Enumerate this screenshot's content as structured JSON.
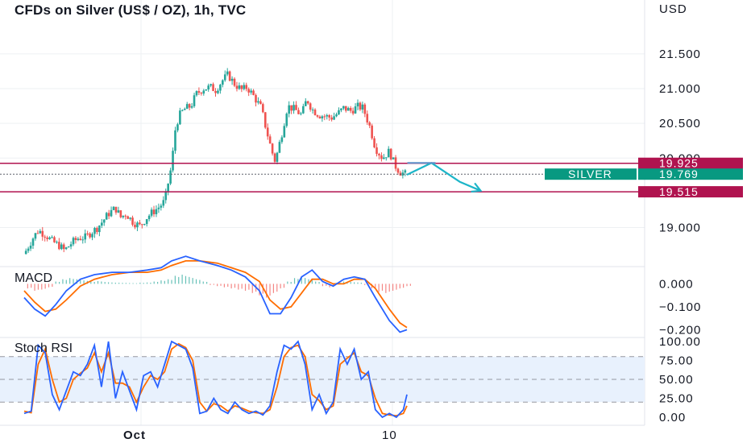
{
  "chart_data": {
    "type": "candlestick",
    "title": "CFDs on Silver (US$ / OZ), 1h, TVC",
    "currency": "USD",
    "price_axis": {
      "ticks": [
        {
          "value": 21.5,
          "label": "21.500"
        },
        {
          "value": 21.0,
          "label": "21.000"
        },
        {
          "value": 20.5,
          "label": "20.500"
        },
        {
          "value": 20.0,
          "label": "20.000"
        },
        {
          "value": 19.0,
          "label": "19.000"
        }
      ],
      "range": [
        18.45,
        21.95
      ]
    },
    "time_axis": {
      "ticks": [
        {
          "label": "Oct"
        },
        {
          "label": "10"
        }
      ]
    },
    "colors": {
      "up": "#26a69a",
      "down": "#ef5350",
      "level": "#b0134f",
      "silver_tag": "#089981",
      "arrow": "#1cb5c8",
      "macd": "#2962ff",
      "signal": "#ff6d00",
      "stoch_k": "#2962ff",
      "stoch_d": "#ff6d00"
    },
    "levels": [
      {
        "value": 19.925,
        "label": "19.925"
      },
      {
        "value": 19.515,
        "label": "19.515"
      }
    ],
    "last_price": {
      "symbol": "SILVER",
      "value": 19.769,
      "label": "19.769"
    },
    "price_path": [
      [
        0,
        18.62
      ],
      [
        5,
        18.85
      ],
      [
        8,
        18.96
      ],
      [
        12,
        18.9
      ],
      [
        16,
        18.8
      ],
      [
        20,
        18.74
      ],
      [
        23,
        18.67
      ],
      [
        27,
        18.78
      ],
      [
        31,
        18.85
      ],
      [
        35,
        18.86
      ],
      [
        38,
        18.93
      ],
      [
        41,
        18.98
      ],
      [
        45,
        19.1
      ],
      [
        48,
        19.2
      ],
      [
        52,
        19.28
      ],
      [
        55,
        19.15
      ],
      [
        58,
        19.2
      ],
      [
        62,
        19.08
      ],
      [
        66,
        19.02
      ],
      [
        70,
        19.15
      ],
      [
        73,
        19.22
      ],
      [
        77,
        19.3
      ],
      [
        80,
        19.38
      ],
      [
        84,
        19.9
      ],
      [
        86,
        20.4
      ],
      [
        88,
        20.6
      ],
      [
        91,
        20.7
      ],
      [
        95,
        20.75
      ],
      [
        98,
        20.92
      ],
      [
        102,
        21.0
      ],
      [
        106,
        21.02
      ],
      [
        109,
        20.98
      ],
      [
        113,
        21.12
      ],
      [
        116,
        21.2
      ],
      [
        120,
        21.06
      ],
      [
        124,
        20.98
      ],
      [
        127,
        21.02
      ],
      [
        131,
        20.88
      ],
      [
        135,
        20.72
      ],
      [
        138,
        20.4
      ],
      [
        141,
        20.1
      ],
      [
        143,
        19.95
      ],
      [
        147,
        20.38
      ],
      [
        150,
        20.75
      ],
      [
        154,
        20.7
      ],
      [
        158,
        20.62
      ],
      [
        161,
        20.85
      ],
      [
        164,
        20.7
      ],
      [
        168,
        20.62
      ],
      [
        172,
        20.6
      ],
      [
        175,
        20.58
      ],
      [
        179,
        20.65
      ],
      [
        182,
        20.72
      ],
      [
        186,
        20.68
      ],
      [
        190,
        20.74
      ],
      [
        193,
        20.72
      ],
      [
        197,
        20.44
      ],
      [
        200,
        20.15
      ],
      [
        204,
        20.0
      ],
      [
        208,
        20.1
      ],
      [
        211,
        19.9
      ],
      [
        214,
        19.8
      ],
      [
        218,
        19.76
      ]
    ],
    "projection": [
      [
        218,
        19.76
      ],
      [
        232,
        19.93
      ],
      [
        248,
        19.66
      ],
      [
        260,
        19.53
      ]
    ],
    "macd": {
      "label": "MACD",
      "ticks": [
        {
          "value": 0.0,
          "label": "0.000"
        },
        {
          "value": -0.1,
          "label": "−0.100"
        },
        {
          "value": -0.2,
          "label": "−0.200"
        }
      ],
      "range": [
        -0.23,
        0.075
      ],
      "macd_path": [
        [
          0,
          -0.06
        ],
        [
          6,
          -0.11
        ],
        [
          12,
          -0.14
        ],
        [
          18,
          -0.09
        ],
        [
          24,
          -0.03
        ],
        [
          32,
          0.02
        ],
        [
          40,
          0.04
        ],
        [
          50,
          0.05
        ],
        [
          60,
          0.05
        ],
        [
          70,
          0.06
        ],
        [
          78,
          0.07
        ],
        [
          84,
          0.1
        ],
        [
          92,
          0.12
        ],
        [
          100,
          0.1
        ],
        [
          110,
          0.08
        ],
        [
          118,
          0.06
        ],
        [
          126,
          0.03
        ],
        [
          134,
          -0.03
        ],
        [
          140,
          -0.13
        ],
        [
          146,
          -0.13
        ],
        [
          152,
          -0.06
        ],
        [
          158,
          0.03
        ],
        [
          164,
          0.06
        ],
        [
          170,
          0.01
        ],
        [
          176,
          -0.01
        ],
        [
          182,
          0.02
        ],
        [
          188,
          0.03
        ],
        [
          194,
          0.02
        ],
        [
          200,
          -0.06
        ],
        [
          208,
          -0.16
        ],
        [
          214,
          -0.21
        ],
        [
          218,
          -0.2
        ]
      ],
      "signal_path": [
        [
          0,
          -0.03
        ],
        [
          6,
          -0.08
        ],
        [
          12,
          -0.12
        ],
        [
          18,
          -0.11
        ],
        [
          24,
          -0.07
        ],
        [
          32,
          -0.01
        ],
        [
          40,
          0.02
        ],
        [
          50,
          0.04
        ],
        [
          60,
          0.05
        ],
        [
          70,
          0.05
        ],
        [
          78,
          0.06
        ],
        [
          84,
          0.08
        ],
        [
          92,
          0.1
        ],
        [
          100,
          0.1
        ],
        [
          110,
          0.09
        ],
        [
          118,
          0.07
        ],
        [
          126,
          0.05
        ],
        [
          134,
          0.01
        ],
        [
          140,
          -0.07
        ],
        [
          146,
          -0.11
        ],
        [
          152,
          -0.1
        ],
        [
          158,
          -0.04
        ],
        [
          164,
          0.02
        ],
        [
          170,
          0.02
        ],
        [
          176,
          0.0
        ],
        [
          182,
          0.0
        ],
        [
          188,
          0.02
        ],
        [
          194,
          0.02
        ],
        [
          200,
          -0.02
        ],
        [
          208,
          -0.11
        ],
        [
          214,
          -0.17
        ],
        [
          218,
          -0.19
        ]
      ],
      "hist": [
        [
          2,
          -0.02
        ],
        [
          6,
          -0.03
        ],
        [
          10,
          -0.025
        ],
        [
          14,
          -0.015
        ],
        [
          18,
          0.01
        ],
        [
          22,
          0.02
        ],
        [
          26,
          0.025
        ],
        [
          30,
          0.02
        ],
        [
          34,
          0.015
        ],
        [
          38,
          0.01
        ],
        [
          42,
          0.012
        ],
        [
          46,
          0.008
        ],
        [
          50,
          0.006
        ],
        [
          54,
          0.005
        ],
        [
          58,
          0.004
        ],
        [
          62,
          0.003
        ],
        [
          66,
          0.005
        ],
        [
          70,
          0.006
        ],
        [
          74,
          0.01
        ],
        [
          78,
          0.015
        ],
        [
          82,
          0.02
        ],
        [
          86,
          0.035
        ],
        [
          90,
          0.04
        ],
        [
          94,
          0.03
        ],
        [
          98,
          0.02
        ],
        [
          102,
          0.01
        ],
        [
          106,
          -0.005
        ],
        [
          110,
          -0.01
        ],
        [
          114,
          -0.015
        ],
        [
          118,
          -0.02
        ],
        [
          122,
          -0.025
        ],
        [
          126,
          -0.03
        ],
        [
          130,
          -0.04
        ],
        [
          134,
          -0.05
        ],
        [
          138,
          -0.06
        ],
        [
          142,
          -0.04
        ],
        [
          146,
          -0.02
        ],
        [
          150,
          0.01
        ],
        [
          154,
          0.025
        ],
        [
          158,
          0.03
        ],
        [
          162,
          0.02
        ],
        [
          166,
          0.01
        ],
        [
          170,
          -0.01
        ],
        [
          174,
          -0.015
        ],
        [
          178,
          0.005
        ],
        [
          182,
          0.01
        ],
        [
          186,
          0.008
        ],
        [
          190,
          0.006
        ],
        [
          194,
          -0.005
        ],
        [
          198,
          -0.02
        ],
        [
          202,
          -0.035
        ],
        [
          206,
          -0.04
        ],
        [
          210,
          -0.03
        ],
        [
          214,
          -0.02
        ],
        [
          218,
          -0.01
        ]
      ]
    },
    "stoch_rsi": {
      "label": "Stoch RSI",
      "ticks": [
        {
          "value": 100,
          "label": "100.00"
        },
        {
          "value": 75,
          "label": "75.00"
        },
        {
          "value": 50,
          "label": "50.00"
        },
        {
          "value": 25,
          "label": "25.00"
        },
        {
          "value": 0,
          "label": "0.00"
        }
      ],
      "band": [
        20,
        80
      ],
      "k_path": [
        [
          0,
          5
        ],
        [
          4,
          8
        ],
        [
          8,
          95
        ],
        [
          12,
          85
        ],
        [
          16,
          30
        ],
        [
          20,
          10
        ],
        [
          24,
          35
        ],
        [
          28,
          60
        ],
        [
          32,
          55
        ],
        [
          36,
          70
        ],
        [
          40,
          95
        ],
        [
          44,
          40
        ],
        [
          48,
          100
        ],
        [
          52,
          25
        ],
        [
          56,
          60
        ],
        [
          60,
          35
        ],
        [
          64,
          10
        ],
        [
          68,
          55
        ],
        [
          72,
          60
        ],
        [
          76,
          40
        ],
        [
          80,
          70
        ],
        [
          84,
          100
        ],
        [
          88,
          95
        ],
        [
          92,
          90
        ],
        [
          96,
          65
        ],
        [
          100,
          5
        ],
        [
          104,
          8
        ],
        [
          108,
          25
        ],
        [
          112,
          10
        ],
        [
          116,
          5
        ],
        [
          120,
          20
        ],
        [
          124,
          10
        ],
        [
          128,
          5
        ],
        [
          132,
          8
        ],
        [
          136,
          3
        ],
        [
          140,
          15
        ],
        [
          144,
          60
        ],
        [
          148,
          95
        ],
        [
          152,
          90
        ],
        [
          156,
          100
        ],
        [
          160,
          70
        ],
        [
          164,
          10
        ],
        [
          168,
          30
        ],
        [
          172,
          5
        ],
        [
          176,
          20
        ],
        [
          180,
          90
        ],
        [
          184,
          70
        ],
        [
          188,
          90
        ],
        [
          192,
          50
        ],
        [
          196,
          60
        ],
        [
          200,
          10
        ],
        [
          204,
          0
        ],
        [
          208,
          5
        ],
        [
          212,
          0
        ],
        [
          216,
          10
        ],
        [
          218,
          30
        ]
      ],
      "d_path": [
        [
          0,
          8
        ],
        [
          4,
          6
        ],
        [
          8,
          70
        ],
        [
          12,
          90
        ],
        [
          16,
          50
        ],
        [
          20,
          20
        ],
        [
          24,
          25
        ],
        [
          28,
          50
        ],
        [
          32,
          58
        ],
        [
          36,
          65
        ],
        [
          40,
          85
        ],
        [
          44,
          60
        ],
        [
          48,
          85
        ],
        [
          52,
          45
        ],
        [
          56,
          45
        ],
        [
          60,
          40
        ],
        [
          64,
          20
        ],
        [
          68,
          40
        ],
        [
          72,
          55
        ],
        [
          76,
          50
        ],
        [
          80,
          60
        ],
        [
          84,
          90
        ],
        [
          88,
          97
        ],
        [
          92,
          92
        ],
        [
          96,
          75
        ],
        [
          100,
          20
        ],
        [
          104,
          8
        ],
        [
          108,
          18
        ],
        [
          112,
          15
        ],
        [
          116,
          8
        ],
        [
          120,
          15
        ],
        [
          124,
          12
        ],
        [
          128,
          8
        ],
        [
          132,
          6
        ],
        [
          136,
          5
        ],
        [
          140,
          10
        ],
        [
          144,
          40
        ],
        [
          148,
          80
        ],
        [
          152,
          92
        ],
        [
          156,
          95
        ],
        [
          160,
          80
        ],
        [
          164,
          30
        ],
        [
          168,
          22
        ],
        [
          172,
          10
        ],
        [
          176,
          15
        ],
        [
          180,
          70
        ],
        [
          184,
          78
        ],
        [
          188,
          85
        ],
        [
          192,
          60
        ],
        [
          196,
          55
        ],
        [
          200,
          25
        ],
        [
          204,
          5
        ],
        [
          208,
          3
        ],
        [
          212,
          2
        ],
        [
          216,
          5
        ],
        [
          218,
          15
        ]
      ]
    }
  }
}
